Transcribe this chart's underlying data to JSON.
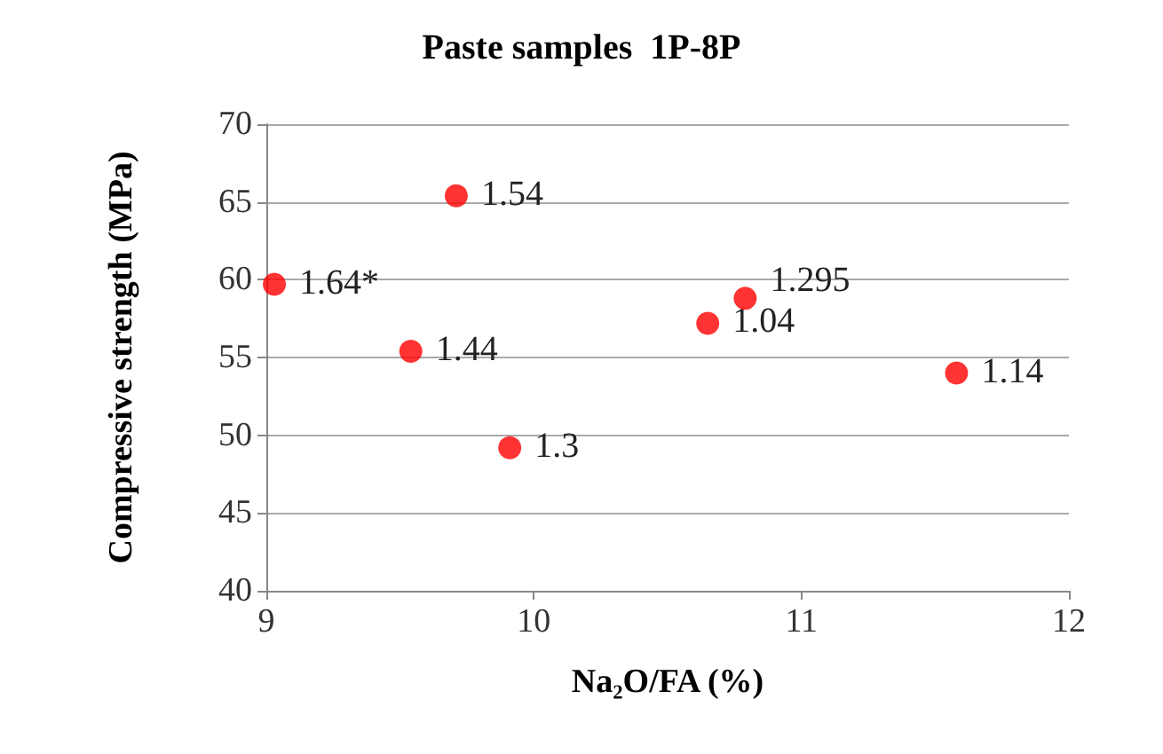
{
  "chart_data": {
    "type": "scatter",
    "title": "Paste samples  1P-8P",
    "xlabel": "Na₂O/FA (%)",
    "ylabel": "Compressive strength (MPa)",
    "x": [
      9.03,
      9.54,
      9.71,
      9.91,
      10.65,
      10.79,
      11.58
    ],
    "series": [
      {
        "color": "#ff0000",
        "values": [
          59.7,
          55.4,
          65.4,
          49.2,
          57.2,
          58.8,
          54.0
        ]
      }
    ],
    "annotations": [
      {
        "text": "1.64*",
        "x": 9.03,
        "y": 59.7
      },
      {
        "text": "1.44",
        "x": 9.54,
        "y": 55.4
      },
      {
        "text": "1.54",
        "x": 9.71,
        "y": 65.4
      },
      {
        "text": "1.3",
        "x": 9.91,
        "y": 49.2
      },
      {
        "text": "1.04",
        "x": 10.65,
        "y": 57.2
      },
      {
        "text": "1.295",
        "x": 10.79,
        "y": 58.8
      },
      {
        "text": "1.14",
        "x": 11.58,
        "y": 54.0
      }
    ],
    "xlim": [
      9,
      12
    ],
    "xticks": [
      9,
      10,
      11,
      12
    ],
    "ylim": [
      40,
      70
    ],
    "yticks": [
      40,
      45,
      50,
      55,
      60,
      65,
      70
    ],
    "grid": "y",
    "marker": "circle"
  }
}
